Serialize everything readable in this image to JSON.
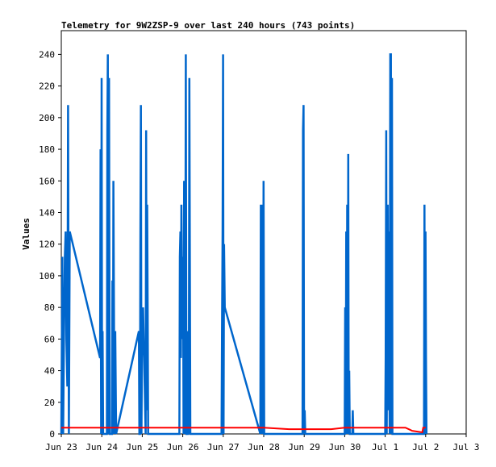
{
  "chart_data": {
    "type": "line",
    "title": "Telemetry for 9W2ZSP-9 over last 240 hours (743 points)",
    "xlabel": "",
    "ylabel": "Values",
    "xlim": [
      0,
      240
    ],
    "ylim": [
      0,
      255
    ],
    "x_ticks": [
      {
        "x": 0,
        "label": "Jun 23"
      },
      {
        "x": 24,
        "label": "Jun 24"
      },
      {
        "x": 48,
        "label": "Jun 25"
      },
      {
        "x": 72,
        "label": "Jun 26"
      },
      {
        "x": 96,
        "label": "Jun 27"
      },
      {
        "x": 120,
        "label": "Jun 28"
      },
      {
        "x": 144,
        "label": "Jun 29"
      },
      {
        "x": 168,
        "label": "Jun 30"
      },
      {
        "x": 192,
        "label": "Jul 1"
      },
      {
        "x": 216,
        "label": "Jul 2"
      },
      {
        "x": 240,
        "label": "Jul 3"
      }
    ],
    "y_ticks": [
      0,
      20,
      40,
      60,
      80,
      100,
      120,
      140,
      160,
      180,
      200,
      220,
      240
    ],
    "grid": false,
    "series": [
      {
        "color": "#0066cc",
        "points": [
          [
            0.0,
            0
          ],
          [
            0.6,
            112
          ],
          [
            1.1,
            0
          ],
          [
            1.6,
            60
          ],
          [
            2.1,
            112
          ],
          [
            2.6,
            128
          ],
          [
            3.0,
            60
          ],
          [
            3.6,
            30
          ],
          [
            4.0,
            208
          ],
          [
            4.5,
            0
          ],
          [
            5.0,
            128
          ],
          [
            23.0,
            48
          ],
          [
            23.3,
            180
          ],
          [
            23.6,
            0
          ],
          [
            23.9,
            225
          ],
          [
            24.2,
            0
          ],
          [
            24.5,
            65
          ],
          [
            24.8,
            0
          ],
          [
            27.0,
            0
          ],
          [
            27.3,
            192
          ],
          [
            27.6,
            240
          ],
          [
            27.9,
            0
          ],
          [
            28.3,
            225
          ],
          [
            28.7,
            0
          ],
          [
            30.0,
            0
          ],
          [
            30.3,
            97
          ],
          [
            30.6,
            0
          ],
          [
            30.9,
            160
          ],
          [
            31.2,
            80
          ],
          [
            31.5,
            0
          ],
          [
            32.0,
            65
          ],
          [
            32.5,
            0
          ],
          [
            46.0,
            65
          ],
          [
            46.3,
            0
          ],
          [
            46.6,
            0
          ],
          [
            46.9,
            128
          ],
          [
            47.2,
            208
          ],
          [
            47.5,
            0
          ],
          [
            47.8,
            48
          ],
          [
            48.5,
            80
          ],
          [
            50.0,
            0
          ],
          [
            50.3,
            192
          ],
          [
            50.6,
            15
          ],
          [
            50.9,
            145
          ],
          [
            51.2,
            80
          ],
          [
            51.5,
            0
          ],
          [
            70.0,
            0
          ],
          [
            70.3,
            112
          ],
          [
            70.6,
            128
          ],
          [
            70.9,
            48
          ],
          [
            71.2,
            145
          ],
          [
            71.5,
            97
          ],
          [
            71.8,
            60
          ],
          [
            72.2,
            112
          ],
          [
            72.5,
            0
          ],
          [
            72.8,
            160
          ],
          [
            73.1,
            112
          ],
          [
            73.4,
            0
          ],
          [
            73.8,
            240
          ],
          [
            74.2,
            0
          ],
          [
            75.0,
            0
          ],
          [
            75.3,
            65
          ],
          [
            75.6,
            0
          ],
          [
            75.9,
            225
          ],
          [
            76.2,
            112
          ],
          [
            76.5,
            0
          ],
          [
            95.0,
            0
          ],
          [
            95.3,
            65
          ],
          [
            95.6,
            128
          ],
          [
            95.9,
            240
          ],
          [
            96.2,
            0
          ],
          [
            96.5,
            120
          ],
          [
            96.9,
            80
          ],
          [
            118.0,
            0
          ],
          [
            118.3,
            145
          ],
          [
            118.6,
            80
          ],
          [
            118.9,
            0
          ],
          [
            119.2,
            145
          ],
          [
            119.5,
            0
          ],
          [
            119.9,
            160
          ],
          [
            120.3,
            0
          ],
          [
            143.0,
            0
          ],
          [
            143.3,
            192
          ],
          [
            143.6,
            208
          ],
          [
            143.9,
            0
          ],
          [
            144.3,
            15
          ],
          [
            144.6,
            0
          ],
          [
            168.0,
            0
          ],
          [
            168.3,
            80
          ],
          [
            168.6,
            0
          ],
          [
            168.9,
            128
          ],
          [
            169.2,
            0
          ],
          [
            169.5,
            145
          ],
          [
            169.8,
            0
          ],
          [
            170.1,
            177
          ],
          [
            170.4,
            0
          ],
          [
            170.7,
            40
          ],
          [
            171.0,
            0
          ],
          [
            172.5,
            0
          ],
          [
            172.8,
            15
          ],
          [
            173.1,
            0
          ],
          [
            192.0,
            0
          ],
          [
            192.3,
            48
          ],
          [
            192.6,
            192
          ],
          [
            192.9,
            0
          ],
          [
            193.2,
            80
          ],
          [
            193.5,
            145
          ],
          [
            193.8,
            15
          ],
          [
            194.1,
            128
          ],
          [
            194.4,
            48
          ],
          [
            194.7,
            0
          ],
          [
            195.0,
            240
          ],
          [
            195.4,
            240
          ],
          [
            195.7,
            0
          ],
          [
            196.0,
            225
          ],
          [
            196.3,
            0
          ],
          [
            215.0,
            0
          ],
          [
            215.3,
            145
          ],
          [
            215.6,
            0
          ],
          [
            215.9,
            128
          ],
          [
            216.2,
            48
          ],
          [
            216.5,
            0
          ]
        ]
      },
      {
        "color": "#ff0000",
        "points": [
          [
            0,
            4
          ],
          [
            96,
            4
          ],
          [
            120,
            4
          ],
          [
            135,
            3
          ],
          [
            160,
            3
          ],
          [
            168,
            4
          ],
          [
            204,
            4
          ],
          [
            208,
            2
          ],
          [
            214,
            1
          ],
          [
            214.5,
            4
          ],
          [
            216,
            4
          ]
        ]
      }
    ],
    "legend": "none"
  }
}
